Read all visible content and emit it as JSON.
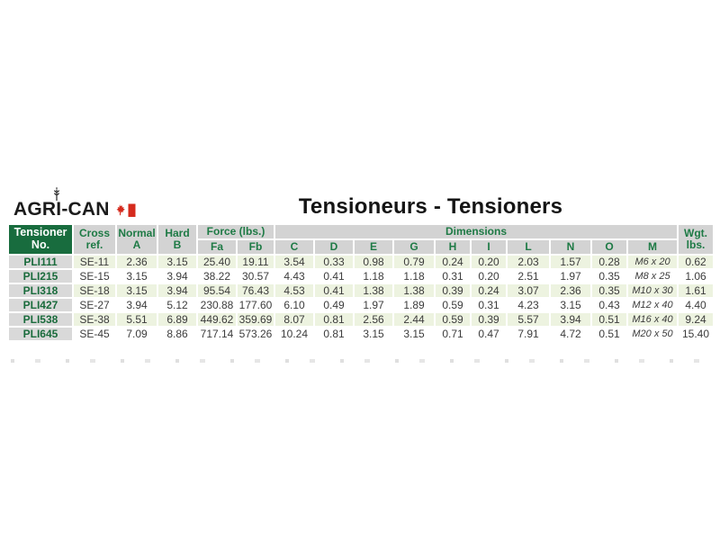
{
  "logo": {
    "parts": [
      "AGR",
      "I",
      "-CAN"
    ],
    "full_text": "AGRI-CAN",
    "icons": [
      "wheat-icon",
      "canada-flag-icon"
    ]
  },
  "title": "Tensioneurs - Tensioners",
  "colors": {
    "dark_green_header": "#186c3e",
    "header_gray": "#d3d3d3",
    "row_header_gray": "#d9d9d9",
    "alt_row_green": "#edf3e0",
    "header_text_green": "#1e7a45",
    "row_label_green": "#1a6b3c",
    "flag_red": "#d52b1e",
    "body_text": "#3c3c3c"
  },
  "table": {
    "header": {
      "tensioner_no": [
        "Tensioner",
        "No."
      ],
      "cross_ref": [
        "Cross",
        "ref."
      ],
      "normal_a": [
        "Normal",
        "A"
      ],
      "hard_b": [
        "Hard",
        "B"
      ],
      "force": "Force (lbs.)",
      "dimensions": "Dimensions",
      "weight": [
        "Wgt.",
        "lbs."
      ]
    },
    "subheader": [
      "Fa",
      "Fb",
      "C",
      "D",
      "E",
      "G",
      "H",
      "I",
      "L",
      "N",
      "O",
      "M"
    ],
    "rows": [
      [
        "PLI111",
        "SE-11",
        "2.36",
        "3.15",
        "25.40",
        "19.11",
        "3.54",
        "0.33",
        "0.98",
        "0.79",
        "0.24",
        "0.20",
        "2.03",
        "1.57",
        "0.28",
        "M6 x 20",
        "0.62"
      ],
      [
        "PLI215",
        "SE-15",
        "3.15",
        "3.94",
        "38.22",
        "30.57",
        "4.43",
        "0.41",
        "1.18",
        "1.18",
        "0.31",
        "0.20",
        "2.51",
        "1.97",
        "0.35",
        "M8 x 25",
        "1.06"
      ],
      [
        "PLI318",
        "SE-18",
        "3.15",
        "3.94",
        "95.54",
        "76.43",
        "4.53",
        "0.41",
        "1.38",
        "1.38",
        "0.39",
        "0.24",
        "3.07",
        "2.36",
        "0.35",
        "M10 x 30",
        "1.61"
      ],
      [
        "PLI427",
        "SE-27",
        "3.94",
        "5.12",
        "230.88",
        "177.60",
        "6.10",
        "0.49",
        "1.97",
        "1.89",
        "0.59",
        "0.31",
        "4.23",
        "3.15",
        "0.43",
        "M12 x 40",
        "4.40"
      ],
      [
        "PLI538",
        "SE-38",
        "5.51",
        "6.89",
        "449.62",
        "359.69",
        "8.07",
        "0.81",
        "2.56",
        "2.44",
        "0.59",
        "0.39",
        "5.57",
        "3.94",
        "0.51",
        "M16 x 40",
        "9.24"
      ],
      [
        "PLI645",
        "SE-45",
        "7.09",
        "8.86",
        "717.14",
        "573.26",
        "10.24",
        "0.81",
        "3.15",
        "3.15",
        "0.71",
        "0.47",
        "7.91",
        "4.72",
        "0.51",
        "M20 x 50",
        "15.40"
      ]
    ]
  }
}
